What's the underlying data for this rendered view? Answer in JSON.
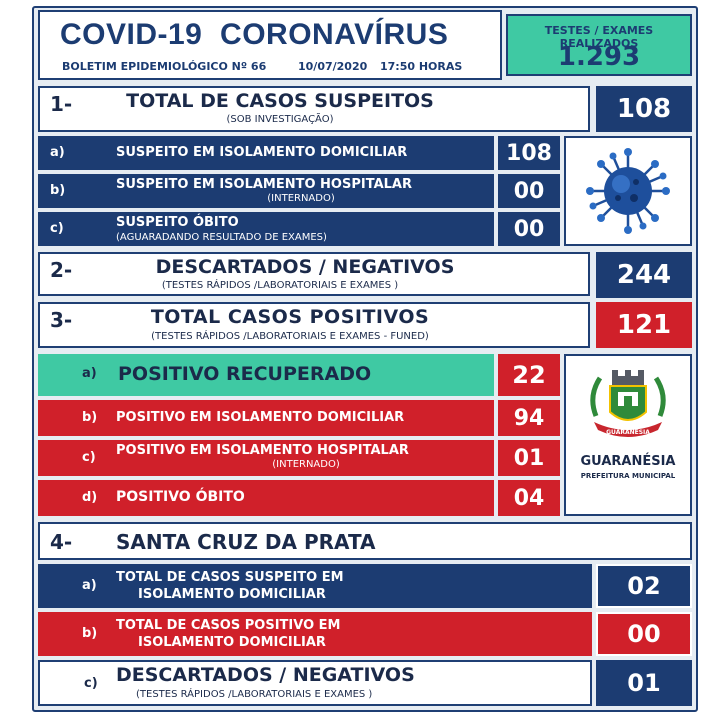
{
  "header": {
    "title": "COVID-19  CORONAVÍRUS",
    "bulletin": "BOLETIM EPIDEMIOLÓGICO Nº 66",
    "date": "10/07/2020",
    "time": "17:50 HORAS",
    "tests_label": "TESTES / EXAMES REALIZADOS",
    "tests_value": "1.293"
  },
  "section1": {
    "number": "1-",
    "title": "TOTAL DE CASOS SUSPEITOS",
    "subtitle": "(SOB INVESTIGAÇÃO)",
    "value": "108",
    "rows": [
      {
        "letter": "a)",
        "label": "SUSPEITO EM ISOLAMENTO DOMICILIAR",
        "sub": "",
        "value": "108"
      },
      {
        "letter": "b)",
        "label": "SUSPEITO EM ISOLAMENTO HOSPITALAR",
        "sub": "(INTERNADO)",
        "value": "00"
      },
      {
        "letter": "c)",
        "label": "SUSPEITO ÓBITO",
        "sub": "(AGUARADANDO RESULTADO  DE EXAMES)",
        "value": "00"
      }
    ]
  },
  "section2": {
    "number": "2-",
    "title": "DESCARTADOS / NEGATIVOS",
    "subtitle": "(TESTES RÁPIDOS /LABORATORIAIS E EXAMES )",
    "value": "244"
  },
  "section3": {
    "number": "3-",
    "title": "TOTAL CASOS POSITIVOS",
    "subtitle": "(TESTES RÁPIDOS /LABORATORIAIS E EXAMES - FUNED)",
    "value": "121",
    "rows": [
      {
        "letter": "a)",
        "label": "POSITIVO RECUPERADO",
        "sub": "",
        "value": "22"
      },
      {
        "letter": "b)",
        "label": "POSITIVO EM ISOLAMENTO DOMICILIAR",
        "sub": "",
        "value": "94"
      },
      {
        "letter": "c)",
        "label": "POSITIVO EM ISOLAMENTO HOSPITALAR",
        "sub": "(INTERNADO)",
        "value": "01"
      },
      {
        "letter": "d)",
        "label": "POSITIVO ÓBITO",
        "sub": "",
        "value": "04"
      }
    ],
    "logo_name": "GUARANÉSIA",
    "logo_sub": "PREFEITURA MUNICIPAL",
    "logo_ribbon": "GUARANÉSIA"
  },
  "section4": {
    "number": "4-",
    "title": "SANTA CRUZ DA PRATA",
    "rows": [
      {
        "letter": "a)",
        "label1": "TOTAL DE CASOS SUSPEITO EM",
        "label2": "ISOLAMENTO DOMICILIAR",
        "value": "02"
      },
      {
        "letter": "b)",
        "label1": "TOTAL DE CASOS POSITIVO EM",
        "label2": "ISOLAMENTO DOMICILIAR",
        "value": "00"
      }
    ],
    "discarded": {
      "letter": "c)",
      "title": "DESCARTADOS / NEGATIVOS",
      "subtitle": "(TESTES RÁPIDOS /LABORATORIAIS E EXAMES )",
      "value": "01"
    }
  },
  "colors": {
    "navy": "#1c3c72",
    "red": "#d0202a",
    "green": "#3fc9a3"
  },
  "icons": [
    "coronavirus-icon",
    "city-coat-of-arms-icon"
  ]
}
